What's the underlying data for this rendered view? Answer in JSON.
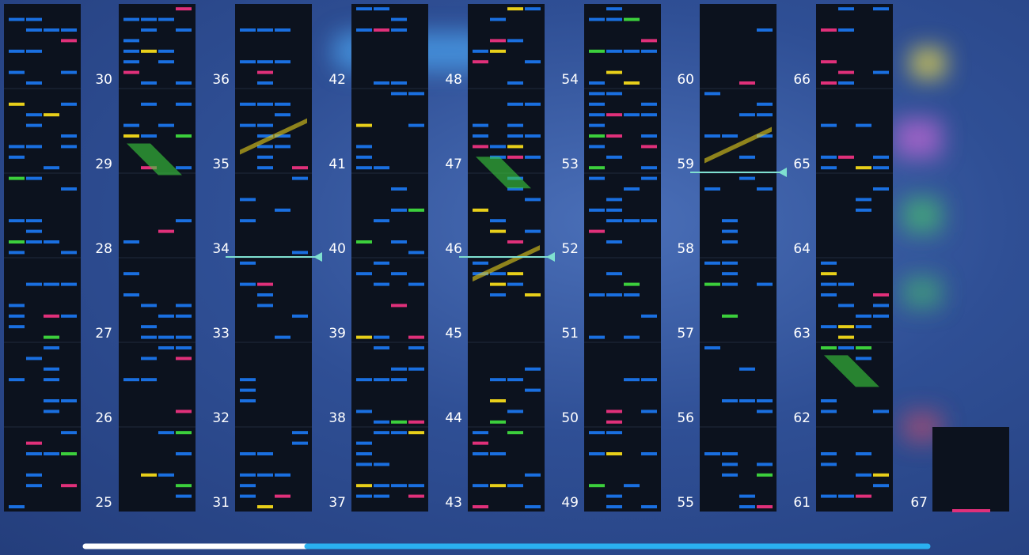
{
  "columns": [
    {
      "measures": [
        "25",
        "26",
        "27",
        "28",
        "29",
        "30"
      ]
    },
    {
      "measures": [
        "31",
        "32",
        "33",
        "34",
        "35",
        "36"
      ]
    },
    {
      "measures": [
        "37",
        "38",
        "39",
        "40",
        "41",
        "42"
      ]
    },
    {
      "measures": [
        "43",
        "44",
        "45",
        "46",
        "47",
        "48"
      ]
    },
    {
      "measures": [
        "49",
        "50",
        "51",
        "52",
        "53",
        "54"
      ]
    },
    {
      "measures": [
        "55",
        "56",
        "57",
        "58",
        "59",
        "60"
      ]
    },
    {
      "measures": [
        "61",
        "62",
        "63",
        "64",
        "65",
        "66"
      ]
    },
    {
      "measures": [
        "67"
      ]
    }
  ]
}
